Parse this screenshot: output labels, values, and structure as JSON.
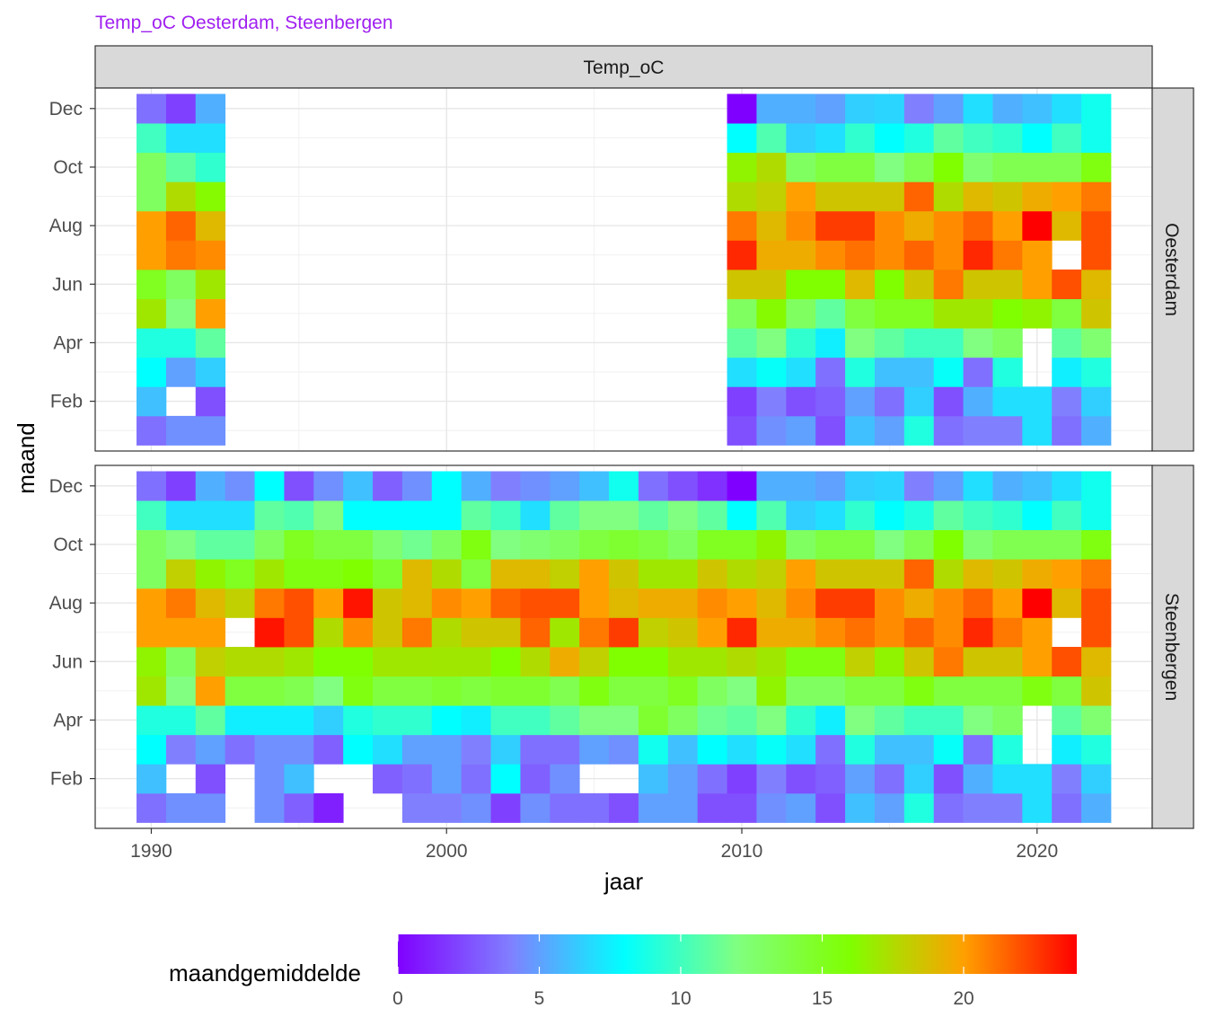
{
  "chart_data": {
    "type": "heatmap",
    "title": "Temp_oC Oesterdam, Steenbergen",
    "facet_column": "Temp_oC",
    "xlabel": "jaar",
    "ylabel": "maand",
    "x_ticks": [
      1990,
      2000,
      2010,
      2020
    ],
    "y_tick_labels": [
      "Feb",
      "Apr",
      "Jun",
      "Aug",
      "Oct",
      "Dec"
    ],
    "y_tick_months": [
      2,
      4,
      6,
      8,
      10,
      12
    ],
    "xlim": [
      1988.1,
      2023.9
    ],
    "ylim": [
      0.3,
      12.7
    ],
    "grid": true,
    "legend": {
      "title": "maandgemiddelde",
      "position": "bottom",
      "ticks": [
        0,
        5,
        10,
        15,
        20
      ],
      "range": [
        0,
        24
      ],
      "colors": [
        "#8000ff",
        "#8080ff",
        "#00ffff",
        "#80ff80",
        "#80ff00",
        "#ffa000",
        "#ff0000"
      ]
    },
    "panels": [
      {
        "name": "Oesterdam",
        "years": [
          1990,
          1991,
          1992,
          2010,
          2011,
          2012,
          2013,
          2014,
          2015,
          2016,
          2017,
          2018,
          2019,
          2020,
          2021,
          2022
        ],
        "values_by_month": [
          [
            3.5,
            4.5,
            4.5,
            2.5,
            4.5,
            5,
            2.5,
            6,
            5,
            9,
            3.5,
            4,
            4,
            7,
            3.5,
            5.5
          ],
          [
            6,
            null,
            2.5,
            2,
            4,
            2.5,
            3,
            5,
            3.5,
            6.5,
            2.5,
            5.5,
            7,
            7,
            4,
            6.5
          ],
          [
            8,
            5,
            6.5,
            7,
            8.2,
            7,
            3.5,
            9,
            6,
            6,
            8.2,
            3.5,
            9,
            null,
            7.5,
            9
          ],
          [
            9,
            9,
            11,
            11,
            12,
            9.5,
            7.5,
            12,
            11,
            10,
            10,
            12,
            13,
            null,
            11,
            12.5
          ],
          [
            17,
            12,
            20,
            13,
            16.2,
            13,
            11,
            14,
            15,
            15,
            17,
            17,
            16,
            16.5,
            14,
            18.5
          ],
          [
            15,
            13,
            17,
            18.5,
            18.5,
            16,
            16,
            19,
            16,
            18.5,
            21,
            18.5,
            18.5,
            20,
            22,
            19
          ],
          [
            20,
            21,
            20.5,
            23,
            19.5,
            19.5,
            20.5,
            21.2,
            20.5,
            21.5,
            20.5,
            23,
            21,
            20,
            null,
            22
          ],
          [
            20,
            21.5,
            19,
            21,
            19,
            20.5,
            22.5,
            22.5,
            20.5,
            19.5,
            20.5,
            21.5,
            20,
            24,
            19,
            22
          ],
          [
            13,
            17.5,
            16.2,
            17.5,
            18,
            20,
            18.5,
            18.5,
            18.5,
            21.5,
            17.5,
            19,
            18.5,
            19.5,
            20,
            21
          ],
          [
            13,
            11,
            9.5,
            16.5,
            17.5,
            13,
            14,
            14,
            12,
            13.5,
            16,
            12.5,
            13.5,
            13.5,
            13.5,
            15.5
          ],
          [
            10,
            7,
            7,
            8,
            10.5,
            6.5,
            7,
            9.5,
            8,
            9,
            11,
            10,
            9.5,
            8,
            10,
            8.5
          ],
          [
            3.5,
            2,
            5.5,
            0,
            5.5,
            5.5,
            5,
            6.5,
            6.7,
            4,
            5,
            7,
            5.5,
            6,
            7,
            8.5
          ]
        ]
      },
      {
        "name": "Steenbergen",
        "years": [
          1990,
          1991,
          1992,
          1993,
          1994,
          1995,
          1996,
          1997,
          1998,
          1999,
          2000,
          2001,
          2002,
          2003,
          2004,
          2005,
          2006,
          2007,
          2008,
          2009,
          2010,
          2011,
          2012,
          2013,
          2014,
          2015,
          2016,
          2017,
          2018,
          2019,
          2020,
          2021,
          2022
        ],
        "values_by_month": [
          [
            3.5,
            4.5,
            4.5,
            null,
            4.5,
            3,
            1,
            null,
            null,
            4,
            4,
            4.5,
            2,
            4.5,
            3.5,
            3.5,
            2.5,
            5,
            5,
            2.5,
            2.5,
            4.5,
            5,
            2.5,
            6,
            5,
            9,
            3.5,
            4,
            4,
            7,
            3.5,
            5.5
          ],
          [
            6,
            null,
            2.5,
            null,
            4.5,
            6,
            null,
            null,
            3,
            3.5,
            5,
            3.5,
            8,
            3,
            4.5,
            null,
            null,
            6,
            5,
            3.5,
            2,
            4,
            2.5,
            3,
            5,
            3.5,
            6.5,
            2.5,
            5.5,
            7,
            7,
            4,
            6.5
          ],
          [
            8,
            4,
            5,
            3.5,
            4.5,
            4.5,
            3,
            8,
            7,
            5,
            5,
            4,
            6.5,
            3.5,
            3.5,
            5,
            4.5,
            8.5,
            6,
            8,
            7,
            8.2,
            7,
            3.5,
            9,
            6,
            6,
            8.2,
            3.5,
            9,
            null,
            7.5,
            9
          ],
          [
            9,
            9,
            11,
            7.5,
            7.5,
            7.5,
            6.5,
            9,
            9.5,
            9.5,
            8,
            7.5,
            10,
            10,
            11,
            12,
            12,
            14.5,
            13,
            11.5,
            11,
            12,
            9.5,
            7.5,
            12,
            11,
            10,
            10,
            12,
            13,
            null,
            11,
            12.5
          ],
          [
            17,
            12,
            20,
            14,
            14,
            13.5,
            12,
            15.5,
            14,
            14,
            14.5,
            14,
            14.5,
            14.5,
            13.5,
            15.5,
            14,
            14,
            15,
            13,
            12,
            16.5,
            13,
            13,
            14,
            14,
            15.5,
            14,
            14,
            14,
            15.5,
            14,
            18.5
          ],
          [
            16.5,
            13,
            18,
            17.5,
            17.5,
            17,
            16,
            16,
            17,
            17,
            17,
            17,
            16,
            17.5,
            19.5,
            18,
            16,
            16,
            17,
            17,
            17.5,
            17,
            15.5,
            15.5,
            18,
            16.5,
            18.5,
            21,
            18.5,
            18.5,
            20,
            22,
            19
          ],
          [
            20,
            20,
            20,
            null,
            23.5,
            22,
            17.5,
            20.5,
            18.5,
            21,
            17.5,
            18.5,
            18.5,
            21.5,
            17,
            21,
            22.5,
            18,
            18.5,
            20,
            23,
            19.5,
            19.5,
            20.5,
            21.2,
            20.5,
            21.5,
            20.5,
            23,
            21,
            20,
            null,
            22
          ],
          [
            20,
            21,
            19,
            18,
            21,
            22,
            20,
            23.5,
            18.5,
            19,
            20.5,
            20,
            21.5,
            22,
            22,
            20,
            19,
            19.5,
            19.5,
            20.5,
            20,
            19,
            20.5,
            22.5,
            22.5,
            20.5,
            19.5,
            20.5,
            21.5,
            20,
            24,
            19,
            22
          ],
          [
            13,
            18,
            16.5,
            15,
            17,
            15.5,
            15.5,
            16,
            14.5,
            19,
            17.5,
            14,
            19,
            19,
            18,
            20,
            18.5,
            17,
            17,
            18.5,
            17.5,
            18,
            20,
            18.5,
            18.5,
            18.5,
            21.5,
            17.5,
            19,
            18.5,
            19.5,
            20,
            21
          ],
          [
            13,
            12,
            11,
            11,
            13,
            15,
            14,
            14,
            12.5,
            11.5,
            13,
            15.5,
            12,
            12.5,
            13,
            14,
            14.5,
            14,
            13,
            15,
            15,
            16.5,
            13,
            14,
            14,
            12,
            13.5,
            16,
            12.5,
            13.5,
            13.5,
            13.5,
            15.5
          ],
          [
            10,
            7,
            7,
            7,
            11,
            10.5,
            12,
            8,
            8,
            8,
            8,
            11,
            10,
            7,
            11,
            12,
            12,
            11,
            12,
            11,
            8,
            10.5,
            6.5,
            7,
            9.5,
            8,
            9,
            11,
            10,
            9.5,
            8,
            10,
            8.5
          ],
          [
            3.5,
            2,
            5.5,
            4.5,
            8,
            2.5,
            4.5,
            6,
            3,
            4.5,
            8,
            5.5,
            4,
            4.5,
            5,
            6,
            8.5,
            3.5,
            2.5,
            1.5,
            0,
            5.5,
            5.5,
            5,
            6.5,
            6.7,
            4,
            5,
            7,
            5.5,
            6,
            7,
            8.5
          ]
        ]
      }
    ]
  }
}
